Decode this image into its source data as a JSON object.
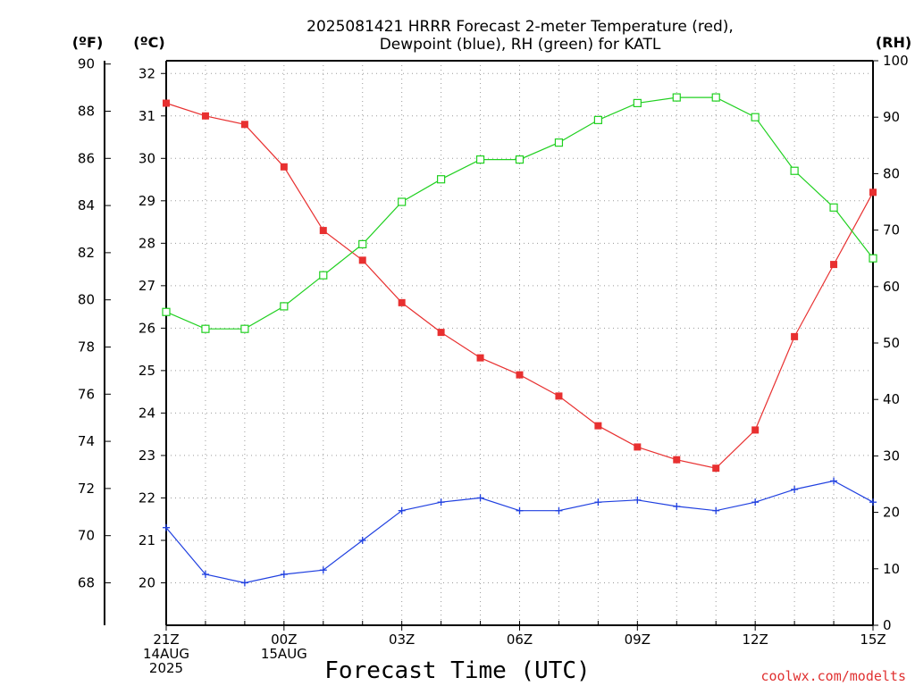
{
  "chart_data": {
    "type": "line",
    "title_line1": "2025081421 HRRR Forecast 2-meter Temperature (red),",
    "title_line2": "Dewpoint (blue), RH (green) for KATL",
    "xlabel": "Forecast Time (UTC)",
    "credit": "coolwx.com/modelts",
    "units": {
      "fahrenheit": "(ºF)",
      "celsius": "(ºC)",
      "rh": "(RH)"
    },
    "x": [
      "21Z",
      "22Z",
      "23Z",
      "00Z",
      "01Z",
      "02Z",
      "03Z",
      "04Z",
      "05Z",
      "06Z",
      "07Z",
      "08Z",
      "09Z",
      "10Z",
      "11Z",
      "12Z",
      "13Z",
      "14Z",
      "15Z"
    ],
    "x_ticks": [
      {
        "index": 0,
        "lines": [
          "21Z",
          "14AUG",
          "2025"
        ]
      },
      {
        "index": 3,
        "lines": [
          "00Z",
          "15AUG"
        ]
      },
      {
        "index": 6,
        "lines": [
          "03Z"
        ]
      },
      {
        "index": 9,
        "lines": [
          "06Z"
        ]
      },
      {
        "index": 12,
        "lines": [
          "09Z"
        ]
      },
      {
        "index": 15,
        "lines": [
          "12Z"
        ]
      },
      {
        "index": 18,
        "lines": [
          "15Z"
        ]
      }
    ],
    "celsius_axis": {
      "ylim": [
        19,
        32.3
      ],
      "ticks": [
        20,
        21,
        22,
        23,
        24,
        25,
        26,
        27,
        28,
        29,
        30,
        31,
        32
      ]
    },
    "fahrenheit_axis": {
      "ticks": [
        68,
        70,
        72,
        74,
        76,
        78,
        80,
        82,
        84,
        86,
        88,
        90
      ]
    },
    "rh_axis": {
      "ylim": [
        0,
        100
      ],
      "ticks": [
        0,
        10,
        20,
        30,
        40,
        50,
        60,
        70,
        80,
        90,
        100
      ]
    },
    "grid": true,
    "series": [
      {
        "name": "2-meter Temperature",
        "axis": "celsius",
        "color": "#e83030",
        "marker": "filled-square",
        "values": [
          31.3,
          31.0,
          30.8,
          29.8,
          28.3,
          27.6,
          26.6,
          25.9,
          25.3,
          24.9,
          24.4,
          23.7,
          23.2,
          22.9,
          22.7,
          23.6,
          25.8,
          27.5,
          29.2
        ]
      },
      {
        "name": "Dewpoint",
        "axis": "celsius",
        "color": "#2040e0",
        "marker": "plus",
        "values": [
          21.3,
          20.2,
          20.0,
          20.2,
          20.3,
          21.0,
          21.7,
          21.9,
          22.0,
          21.7,
          21.7,
          21.9,
          21.95,
          21.8,
          21.7,
          21.9,
          22.2,
          22.4,
          21.9
        ]
      },
      {
        "name": "RH",
        "axis": "rh",
        "color": "#20d020",
        "marker": "open-square",
        "values": [
          55.5,
          52.5,
          52.5,
          56.5,
          62.0,
          67.5,
          75.0,
          79.0,
          82.5,
          82.5,
          85.5,
          89.5,
          92.5,
          93.5,
          93.5,
          90.0,
          80.5,
          74.0,
          65.0
        ]
      }
    ]
  }
}
